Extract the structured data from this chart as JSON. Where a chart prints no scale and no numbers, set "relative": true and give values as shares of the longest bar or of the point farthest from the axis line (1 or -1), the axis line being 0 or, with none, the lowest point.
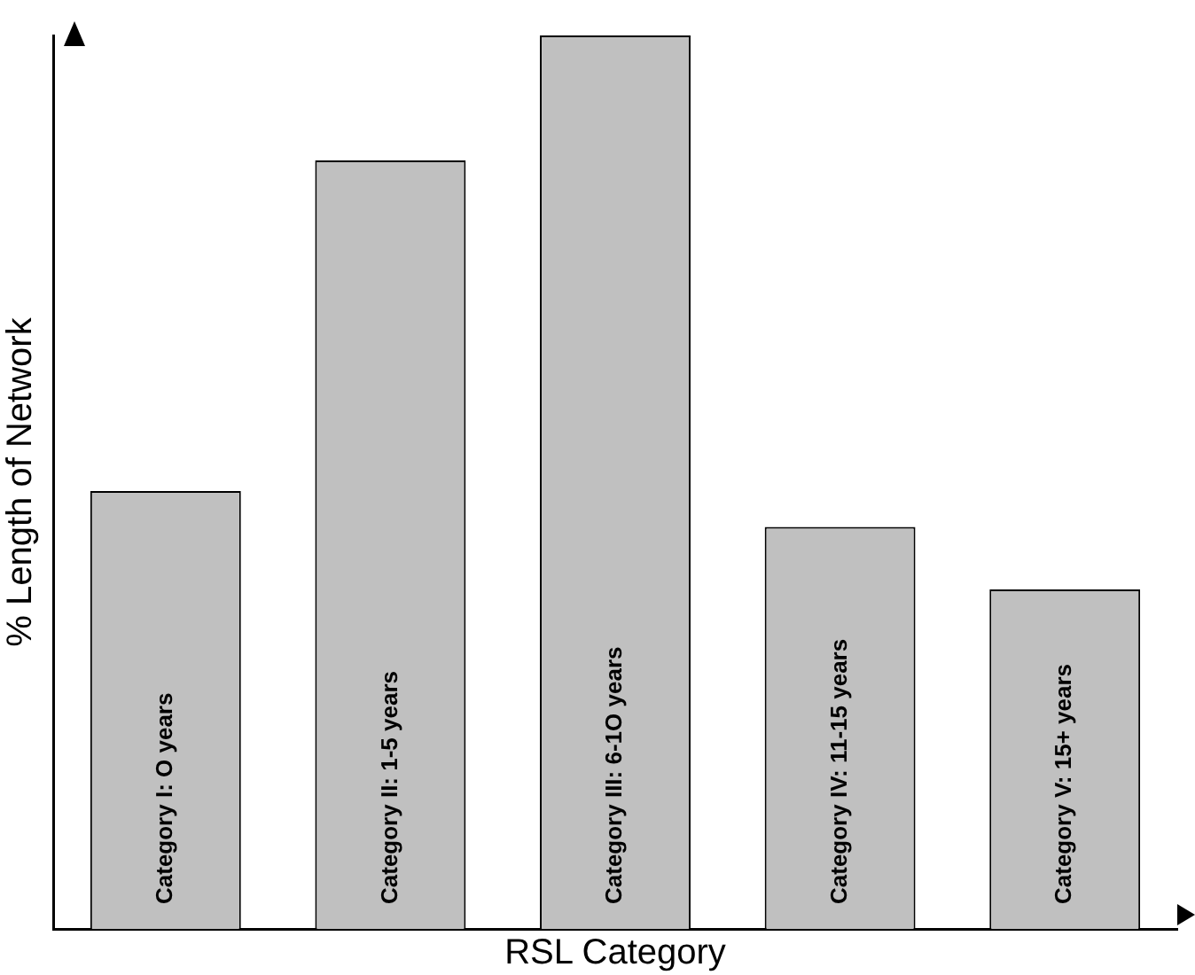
{
  "chart_data": {
    "type": "bar",
    "relative": true,
    "xlabel": "RSL Category",
    "ylabel": "% Length of Network",
    "categories": [
      "Category I: O years",
      "Category II: 1-5 years",
      "Category III: 6-1O years",
      "Category IV: 11-15 years",
      "Category V: 15+ years"
    ],
    "values": [
      0.49,
      0.86,
      1,
      0.45,
      0.38
    ],
    "color": "#c0c0c0",
    "grid": false,
    "legend": false
  }
}
